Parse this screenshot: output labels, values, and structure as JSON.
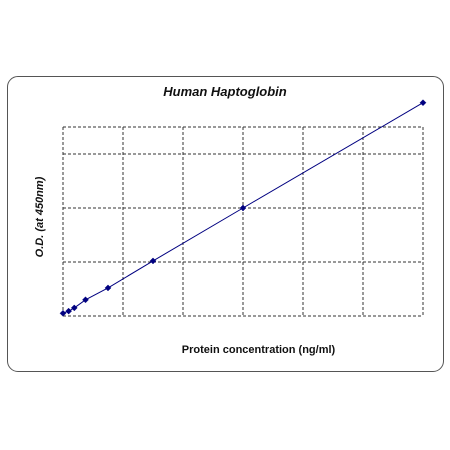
{
  "chart_data": {
    "type": "scatter",
    "title": "Human Haptoglobin",
    "xlabel": "Protein concentration (ng/ml)",
    "ylabel": "O.D. (at 450nm)",
    "grid": true,
    "legend": "none",
    "xlim": [
      0,
      60
    ],
    "ylim": [
      0,
      3.5
    ],
    "x_gridlines": [
      0,
      10,
      20,
      30,
      40,
      50,
      60
    ],
    "y_gridlines": [
      0,
      1,
      2,
      3
    ],
    "series": [
      {
        "x": [
          0,
          0.94,
          1.88,
          3.75,
          7.5,
          15,
          30,
          60
        ],
        "y": [
          0.05,
          0.09,
          0.15,
          0.3,
          0.52,
          1.02,
          2.0,
          3.95
        ],
        "color": "#000080",
        "line": true,
        "marker": "diamond"
      }
    ]
  }
}
